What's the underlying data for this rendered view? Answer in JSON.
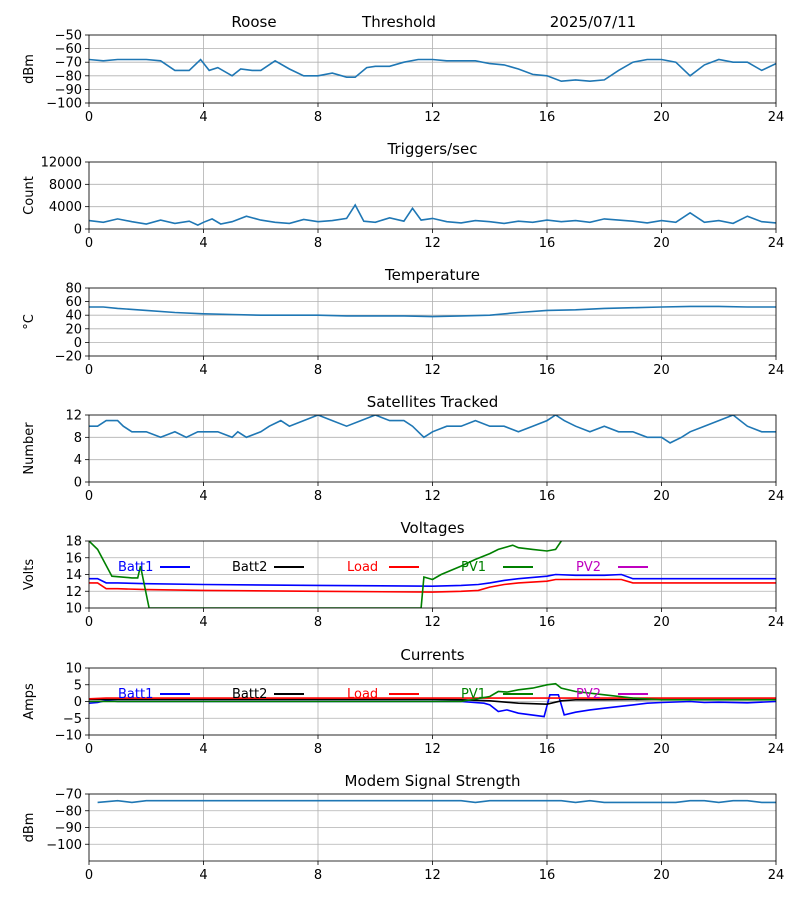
{
  "header": {
    "station": "Roose",
    "mode": "Threshold",
    "date": "2025/07/11"
  },
  "x_ticks": [
    "0",
    "4",
    "8",
    "12",
    "16",
    "20",
    "24"
  ],
  "legend_labels": [
    "Batt1",
    "Batt2",
    "Load",
    "PV1",
    "PV2"
  ],
  "colors": {
    "line": "#1f77b4",
    "Batt1": "#0000ff",
    "Batt2": "#000000",
    "Load": "#ff0000",
    "PV1": "#008000",
    "PV2": "#bf00bf",
    "grid": "#b0b0b0"
  },
  "chart_data": [
    {
      "type": "line",
      "title": "",
      "ylabel": "dBm",
      "xlim": [
        0,
        24
      ],
      "ylim": [
        -100,
        -50
      ],
      "y_ticks": [
        "-50",
        "-60",
        "-70",
        "-80",
        "-90",
        "-100"
      ],
      "grid": true,
      "series": [
        {
          "x": [
            0,
            0.5,
            1,
            1.5,
            2,
            2.5,
            3,
            3.5,
            3.9,
            4.2,
            4.5,
            5,
            5.3,
            5.7,
            6,
            6.5,
            7,
            7.5,
            8,
            8.5,
            9,
            9.3,
            9.7,
            10,
            10.5,
            11,
            11.5,
            12,
            12.5,
            13,
            13.5,
            14,
            14.5,
            15,
            15.5,
            16,
            16.5,
            17,
            17.5,
            18,
            18.5,
            19,
            19.5,
            20,
            20.5,
            21,
            21.5,
            22,
            22.5,
            23,
            23.5,
            24
          ],
          "y": [
            -68,
            -69,
            -68,
            -68,
            -68,
            -69,
            -76,
            -76,
            -68,
            -76,
            -74,
            -80,
            -75,
            -76,
            -76,
            -69,
            -75,
            -80,
            -80,
            -78,
            -81,
            -81,
            -74,
            -73,
            -73,
            -70,
            -68,
            -68,
            -69,
            -69,
            -69,
            -71,
            -72,
            -75,
            -79,
            -80,
            -84,
            -83,
            -84,
            -83,
            -76,
            -70,
            -68,
            -68,
            -70,
            -80,
            -72,
            -68,
            -70,
            -70,
            -76,
            -71
          ]
        }
      ]
    },
    {
      "type": "line",
      "title": "Triggers/sec",
      "ylabel": "Count",
      "xlim": [
        0,
        24
      ],
      "ylim": [
        0,
        12000
      ],
      "y_ticks": [
        "0",
        "4000",
        "8000",
        "12000"
      ],
      "grid": true,
      "series": [
        {
          "x": [
            0,
            0.5,
            1,
            1.5,
            2,
            2.5,
            3,
            3.5,
            3.8,
            4,
            4.3,
            4.6,
            5,
            5.5,
            6,
            6.5,
            7,
            7.5,
            8,
            8.5,
            9,
            9.3,
            9.6,
            10,
            10.5,
            11,
            11.3,
            11.6,
            12,
            12.5,
            13,
            13.5,
            14,
            14.5,
            15,
            15.5,
            16,
            16.5,
            17,
            17.5,
            18,
            18.5,
            19,
            19.5,
            20,
            20.5,
            21,
            21.5,
            22,
            22.5,
            23,
            23.5,
            24
          ],
          "y": [
            1500,
            1200,
            1800,
            1300,
            900,
            1600,
            1000,
            1400,
            700,
            1200,
            1800,
            900,
            1300,
            2300,
            1600,
            1200,
            1000,
            1700,
            1300,
            1500,
            1900,
            4300,
            1400,
            1200,
            2000,
            1400,
            3700,
            1600,
            1900,
            1300,
            1100,
            1500,
            1300,
            1000,
            1400,
            1200,
            1600,
            1300,
            1500,
            1200,
            1800,
            1600,
            1400,
            1100,
            1500,
            1200,
            2900,
            1200,
            1500,
            1000,
            2300,
            1300,
            1100
          ]
        }
      ]
    },
    {
      "type": "line",
      "title": "Temperature",
      "ylabel": "°C",
      "xlim": [
        0,
        24
      ],
      "ylim": [
        -20,
        80
      ],
      "y_ticks": [
        "80",
        "60",
        "40",
        "20",
        "0",
        "-20"
      ],
      "grid": true,
      "series": [
        {
          "x": [
            0,
            0.5,
            1,
            2,
            3,
            4,
            5,
            6,
            7,
            8,
            9,
            10,
            11,
            12,
            13,
            14,
            15,
            16,
            17,
            18,
            19,
            20,
            21,
            22,
            23,
            24
          ],
          "y": [
            52,
            52,
            50,
            47,
            44,
            42,
            41,
            40,
            40,
            40,
            39,
            39,
            39,
            38,
            39,
            40,
            44,
            47,
            48,
            50,
            51,
            52,
            53,
            53,
            52,
            52
          ]
        }
      ]
    },
    {
      "type": "line",
      "title": "Satellites Tracked",
      "ylabel": "Number",
      "xlim": [
        0,
        24
      ],
      "ylim": [
        0,
        12
      ],
      "y_ticks": [
        "12",
        "8",
        "4",
        "0"
      ],
      "grid": true,
      "series": [
        {
          "x": [
            0,
            0.3,
            0.6,
            1,
            1.2,
            1.5,
            2,
            2.5,
            3,
            3.4,
            3.8,
            4,
            4.5,
            5,
            5.2,
            5.5,
            6,
            6.3,
            6.7,
            7,
            7.5,
            8,
            8.5,
            9,
            9.5,
            10,
            10.5,
            11,
            11.3,
            11.7,
            12,
            12.5,
            13,
            13.5,
            14,
            14.5,
            15,
            15.5,
            16,
            16.3,
            16.6,
            17,
            17.5,
            18,
            18.5,
            19,
            19.5,
            20,
            20.3,
            20.7,
            21,
            21.5,
            22,
            22.5,
            23,
            23.5,
            24
          ],
          "y": [
            10,
            10,
            11,
            11,
            10,
            9,
            9,
            8,
            9,
            8,
            9,
            9,
            9,
            8,
            9,
            8,
            9,
            10,
            11,
            10,
            11,
            12,
            11,
            10,
            11,
            12,
            11,
            11,
            10,
            8,
            9,
            10,
            10,
            11,
            10,
            10,
            9,
            10,
            11,
            12,
            11,
            10,
            9,
            10,
            9,
            9,
            8,
            8,
            7,
            8,
            9,
            10,
            11,
            12,
            10,
            9,
            9
          ]
        }
      ]
    },
    {
      "type": "line",
      "title": "Voltages",
      "ylabel": "Volts",
      "xlim": [
        0,
        24
      ],
      "ylim": [
        10,
        18
      ],
      "y_ticks": [
        "18",
        "16",
        "14",
        "12",
        "10"
      ],
      "grid": true,
      "series": [
        {
          "name": "Batt1",
          "x": [
            0,
            0.3,
            0.6,
            1,
            2,
            4,
            8,
            12,
            13,
            13.6,
            14,
            14.5,
            15,
            16,
            16.3,
            17,
            18,
            18.6,
            19,
            20,
            24
          ],
          "y": [
            13.5,
            13.5,
            13,
            13,
            12.9,
            12.8,
            12.7,
            12.6,
            12.7,
            12.8,
            13,
            13.3,
            13.5,
            13.8,
            14,
            13.9,
            13.9,
            14,
            13.5,
            13.5,
            13.5
          ]
        },
        {
          "name": "Load",
          "x": [
            0,
            0.3,
            0.6,
            1,
            2,
            4,
            8,
            12,
            13,
            13.6,
            14,
            14.5,
            15,
            16,
            16.3,
            17,
            18,
            18.6,
            19,
            20,
            24
          ],
          "y": [
            13,
            13,
            12.3,
            12.3,
            12.2,
            12.1,
            12,
            11.9,
            12,
            12.1,
            12.5,
            12.8,
            13,
            13.2,
            13.4,
            13.4,
            13.4,
            13.4,
            13,
            13,
            13
          ]
        },
        {
          "name": "PV1",
          "x": [
            0,
            0.3,
            0.8,
            1.5,
            1.7,
            1.8,
            2.1,
            11.6,
            11.7,
            12,
            12.3,
            13,
            13.5,
            14,
            14.3,
            14.8,
            15,
            15.5,
            16,
            16.3,
            16.5
          ],
          "y": [
            18,
            17,
            13.8,
            13.6,
            13.6,
            15,
            10,
            10,
            13.7,
            13.4,
            14,
            15,
            15.8,
            16.5,
            17,
            17.5,
            17.2,
            17,
            16.8,
            17,
            18
          ]
        }
      ]
    },
    {
      "type": "line",
      "title": "Currents",
      "ylabel": "Amps",
      "xlim": [
        0,
        24
      ],
      "ylim": [
        -10,
        10
      ],
      "y_ticks": [
        "10",
        "5",
        "0",
        "-5",
        "-10"
      ],
      "grid": true,
      "series": [
        {
          "name": "Batt1",
          "x": [
            0,
            0.3,
            0.6,
            1,
            2,
            4,
            8,
            12,
            13,
            13.8,
            14,
            14.3,
            14.6,
            15,
            15.9,
            16.1,
            16.4,
            16.6,
            17,
            17.5,
            18,
            19,
            19.5,
            20,
            21,
            21.5,
            22,
            23,
            24
          ],
          "y": [
            -0.5,
            -0.3,
            0.3,
            0,
            0,
            0,
            0,
            0,
            0,
            -0.5,
            -1,
            -3,
            -2.5,
            -3.5,
            -4.5,
            2,
            2,
            -4,
            -3.2,
            -2.5,
            -2,
            -1,
            -0.5,
            -0.3,
            0,
            -0.3,
            -0.2,
            -0.4,
            0
          ]
        },
        {
          "name": "Batt2",
          "x": [
            0,
            4,
            8,
            12,
            13,
            14,
            15,
            16,
            16.5,
            17,
            18,
            20,
            24
          ],
          "y": [
            0.6,
            0.6,
            0.6,
            0.6,
            0.5,
            0.2,
            -0.5,
            -0.8,
            0.2,
            0.5,
            0.5,
            0.6,
            0.6
          ]
        },
        {
          "name": "Load",
          "x": [
            0,
            0.6,
            1,
            4,
            8,
            12,
            16,
            20,
            24
          ],
          "y": [
            0.8,
            1,
            1,
            1,
            1,
            1,
            1,
            1,
            1
          ]
        },
        {
          "name": "PV1",
          "x": [
            0,
            4,
            8,
            12,
            13,
            14,
            14.3,
            14.6,
            15,
            15.5,
            16,
            16.3,
            16.5,
            17,
            18,
            19,
            20,
            24
          ],
          "y": [
            0,
            0,
            0,
            0,
            0,
            1.5,
            3,
            2.8,
            3.5,
            4,
            5,
            5.3,
            4,
            3,
            2,
            1,
            0.5,
            0.5
          ]
        }
      ]
    },
    {
      "type": "line",
      "title": "Modem Signal Strength",
      "ylabel": "dBm",
      "xlim": [
        0,
        24
      ],
      "ylim": [
        -110,
        -70
      ],
      "y_ticks": [
        "-70",
        "-80",
        "-90",
        "-100"
      ],
      "grid": true,
      "series": [
        {
          "x": [
            0.3,
            1,
            1.5,
            2,
            3,
            4,
            6,
            8,
            10,
            12,
            13,
            13.5,
            14,
            15,
            16,
            16.5,
            17,
            17.5,
            18,
            19,
            20,
            20.5,
            21,
            21.5,
            22,
            22.5,
            23,
            23.5,
            24
          ],
          "y": [
            -75,
            -74,
            -75,
            -74,
            -74,
            -74,
            -74,
            -74,
            -74,
            -74,
            -74,
            -75,
            -74,
            -74,
            -74,
            -74,
            -75,
            -74,
            -75,
            -75,
            -75,
            -75,
            -74,
            -74,
            -75,
            -74,
            -74,
            -75,
            -75
          ]
        }
      ]
    }
  ]
}
